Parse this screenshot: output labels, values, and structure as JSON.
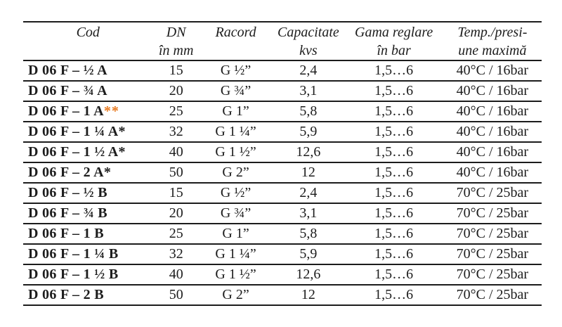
{
  "colors": {
    "text": "#1d1d1d",
    "rule": "#1c1c1c",
    "accent_asterisk": "#e8791e",
    "background": "#ffffff"
  },
  "table": {
    "columns": [
      {
        "id": "cod",
        "line1": "Cod",
        "line2": ""
      },
      {
        "id": "dn",
        "line1": "DN",
        "line2": "în mm"
      },
      {
        "id": "racord",
        "line1": "Racord",
        "line2": ""
      },
      {
        "id": "capacitate",
        "line1": "Capacitate",
        "line2": "kvs"
      },
      {
        "id": "gama",
        "line1": "Gama reglare",
        "line2": "în bar"
      },
      {
        "id": "temp",
        "line1": "Temp./presi-",
        "line2": "une maximă"
      }
    ],
    "rows": [
      {
        "cod": "D 06 F – ½ A",
        "cod_suffix": "",
        "dn": "15",
        "racord": "G ½”",
        "capacitate": "2,4",
        "gama": "1,5…6",
        "temp": "40°C / 16bar"
      },
      {
        "cod": "D 06 F – ¾ A",
        "cod_suffix": "",
        "dn": "20",
        "racord": "G ¾”",
        "capacitate": "3,1",
        "gama": "1,5…6",
        "temp": "40°C / 16bar"
      },
      {
        "cod": "D 06 F – 1 A",
        "cod_suffix": "**",
        "dn": "25",
        "racord": "G 1”",
        "capacitate": "5,8",
        "gama": "1,5…6",
        "temp": "40°C / 16bar"
      },
      {
        "cod": "D 06 F – 1 ¼ A*",
        "cod_suffix": "",
        "dn": "32",
        "racord": "G 1 ¼”",
        "capacitate": "5,9",
        "gama": "1,5…6",
        "temp": "40°C / 16bar"
      },
      {
        "cod": "D 06 F – 1 ½ A*",
        "cod_suffix": "",
        "dn": "40",
        "racord": "G 1 ½”",
        "capacitate": "12,6",
        "gama": "1,5…6",
        "temp": "40°C / 16bar"
      },
      {
        "cod": "D 06 F – 2 A*",
        "cod_suffix": "",
        "dn": "50",
        "racord": "G 2”",
        "capacitate": "12",
        "gama": "1,5…6",
        "temp": "40°C / 16bar"
      },
      {
        "cod": "D 06 F – ½ B",
        "cod_suffix": "",
        "dn": "15",
        "racord": "G ½”",
        "capacitate": "2,4",
        "gama": "1,5…6",
        "temp": "70°C / 25bar"
      },
      {
        "cod": "D 06 F – ¾ B",
        "cod_suffix": "",
        "dn": "20",
        "racord": "G ¾”",
        "capacitate": "3,1",
        "gama": "1,5…6",
        "temp": "70°C / 25bar"
      },
      {
        "cod": "D 06 F – 1 B",
        "cod_suffix": "",
        "dn": "25",
        "racord": "G 1”",
        "capacitate": "5,8",
        "gama": "1,5…6",
        "temp": "70°C / 25bar"
      },
      {
        "cod": "D 06 F – 1 ¼ B",
        "cod_suffix": "",
        "dn": "32",
        "racord": "G 1 ¼”",
        "capacitate": "5,9",
        "gama": "1,5…6",
        "temp": "70°C / 25bar"
      },
      {
        "cod": "D 06 F – 1 ½ B",
        "cod_suffix": "",
        "dn": "40",
        "racord": "G 1 ½”",
        "capacitate": "12,6",
        "gama": "1,5…6",
        "temp": "70°C / 25bar"
      },
      {
        "cod": "D 06 F – 2 B",
        "cod_suffix": "",
        "dn": "50",
        "racord": "G 2”",
        "capacitate": "12",
        "gama": "1,5…6",
        "temp": "70°C / 25bar"
      }
    ]
  }
}
